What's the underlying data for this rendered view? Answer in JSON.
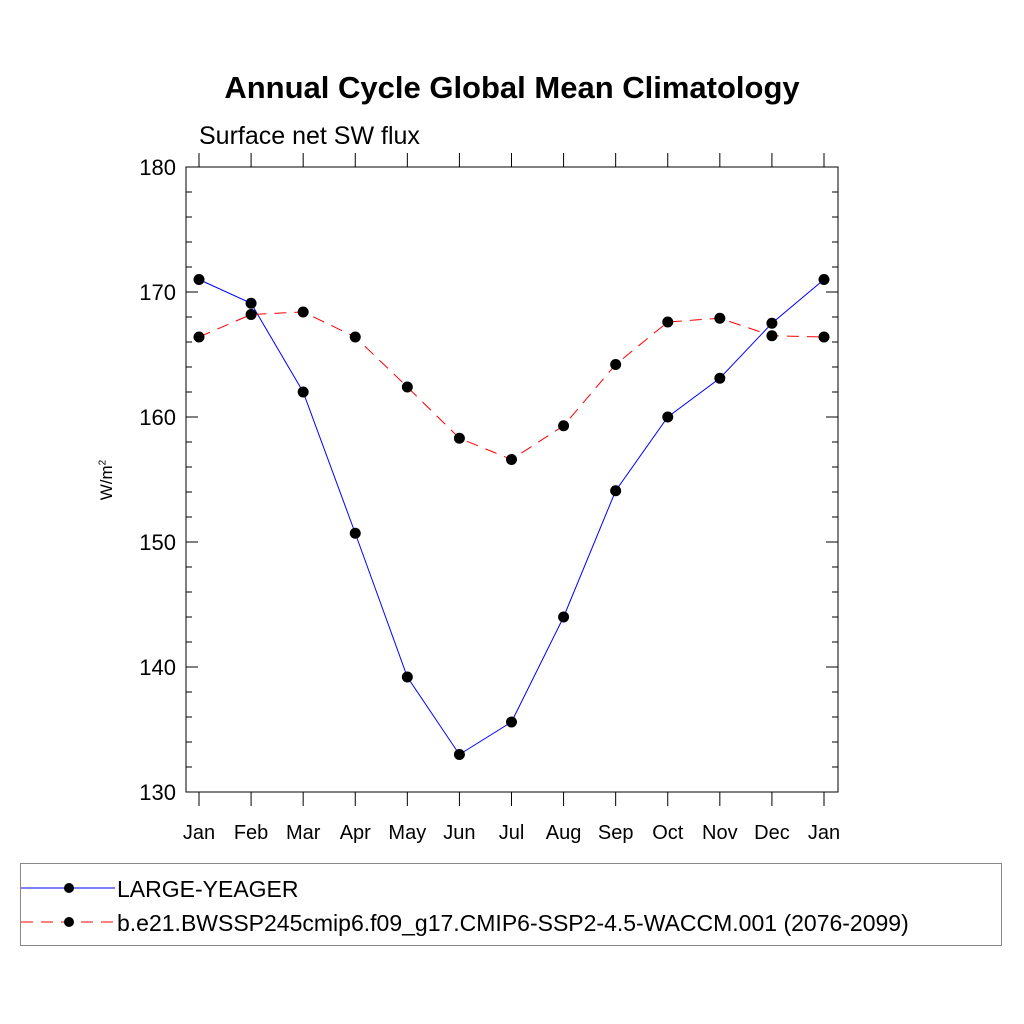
{
  "chart_data": {
    "type": "line",
    "title": "Annual Cycle Global Mean Climatology",
    "subtitle": "Surface net SW flux",
    "ylabel_base": "W/m",
    "ylabel_sup": "2",
    "xlabel": "",
    "categories": [
      "Jan",
      "Feb",
      "Mar",
      "Apr",
      "May",
      "Jun",
      "Jul",
      "Aug",
      "Sep",
      "Oct",
      "Nov",
      "Dec",
      "Jan"
    ],
    "ylim": [
      130,
      180
    ],
    "yticks": [
      130,
      140,
      150,
      160,
      170,
      180
    ],
    "series": [
      {
        "name": "LARGE-YEAGER",
        "color": "#0000ff",
        "dash": "solid",
        "values": [
          171.0,
          169.1,
          162.0,
          150.7,
          139.2,
          133.0,
          135.6,
          144.0,
          154.1,
          160.0,
          163.1,
          167.5,
          171.0
        ]
      },
      {
        "name": "b.e21.BWSSP245cmip6.f09_g17.CMIP6-SSP2-4.5-WACCM.001 (2076-2099)",
        "color": "#ff0000",
        "dash": "dashed",
        "values": [
          166.4,
          168.2,
          168.4,
          166.4,
          162.4,
          158.3,
          156.6,
          159.3,
          164.2,
          167.6,
          167.9,
          166.5,
          166.4
        ]
      }
    ],
    "grid": false,
    "legend_position": "bottom"
  }
}
